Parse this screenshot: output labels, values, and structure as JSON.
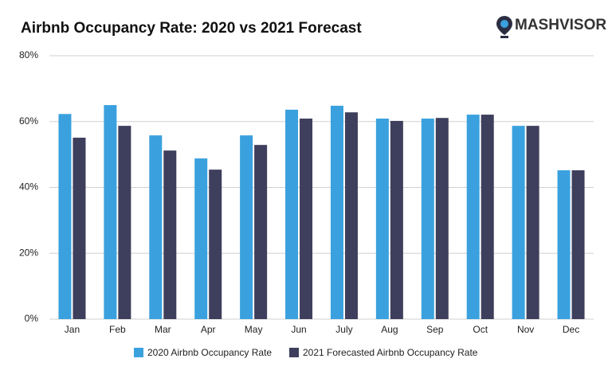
{
  "chart_data": {
    "type": "bar",
    "title": "Airbnb Occupancy Rate: 2020 vs 2021 Forecast",
    "logo": "MASHVISOR",
    "categories": [
      "Jan",
      "Feb",
      "Mar",
      "Apr",
      "May",
      "Jun",
      "July",
      "Aug",
      "Sep",
      "Oct",
      "Nov",
      "Dec"
    ],
    "series": [
      {
        "name": "2020 Airbnb Occupancy Rate",
        "color": "#3aa1de",
        "values": [
          62.3,
          65.0,
          55.8,
          48.8,
          55.8,
          63.6,
          64.8,
          60.9,
          60.9,
          62.1,
          58.7,
          45.2
        ]
      },
      {
        "name": "2021 Forecasted Airbnb Occupancy Rate",
        "color": "#3e3f5c",
        "values": [
          55.1,
          58.7,
          51.2,
          45.4,
          52.9,
          60.9,
          62.8,
          60.2,
          61.1,
          62.1,
          58.7,
          45.2
        ]
      }
    ],
    "ylim": [
      0,
      80
    ],
    "yticks": [
      {
        "value": 0,
        "label": "0%"
      },
      {
        "value": 20,
        "label": "20%"
      },
      {
        "value": 40,
        "label": "40%"
      },
      {
        "value": 60,
        "label": "60%"
      },
      {
        "value": 80,
        "label": "80%"
      }
    ],
    "grid": true,
    "legend": "bottom"
  }
}
